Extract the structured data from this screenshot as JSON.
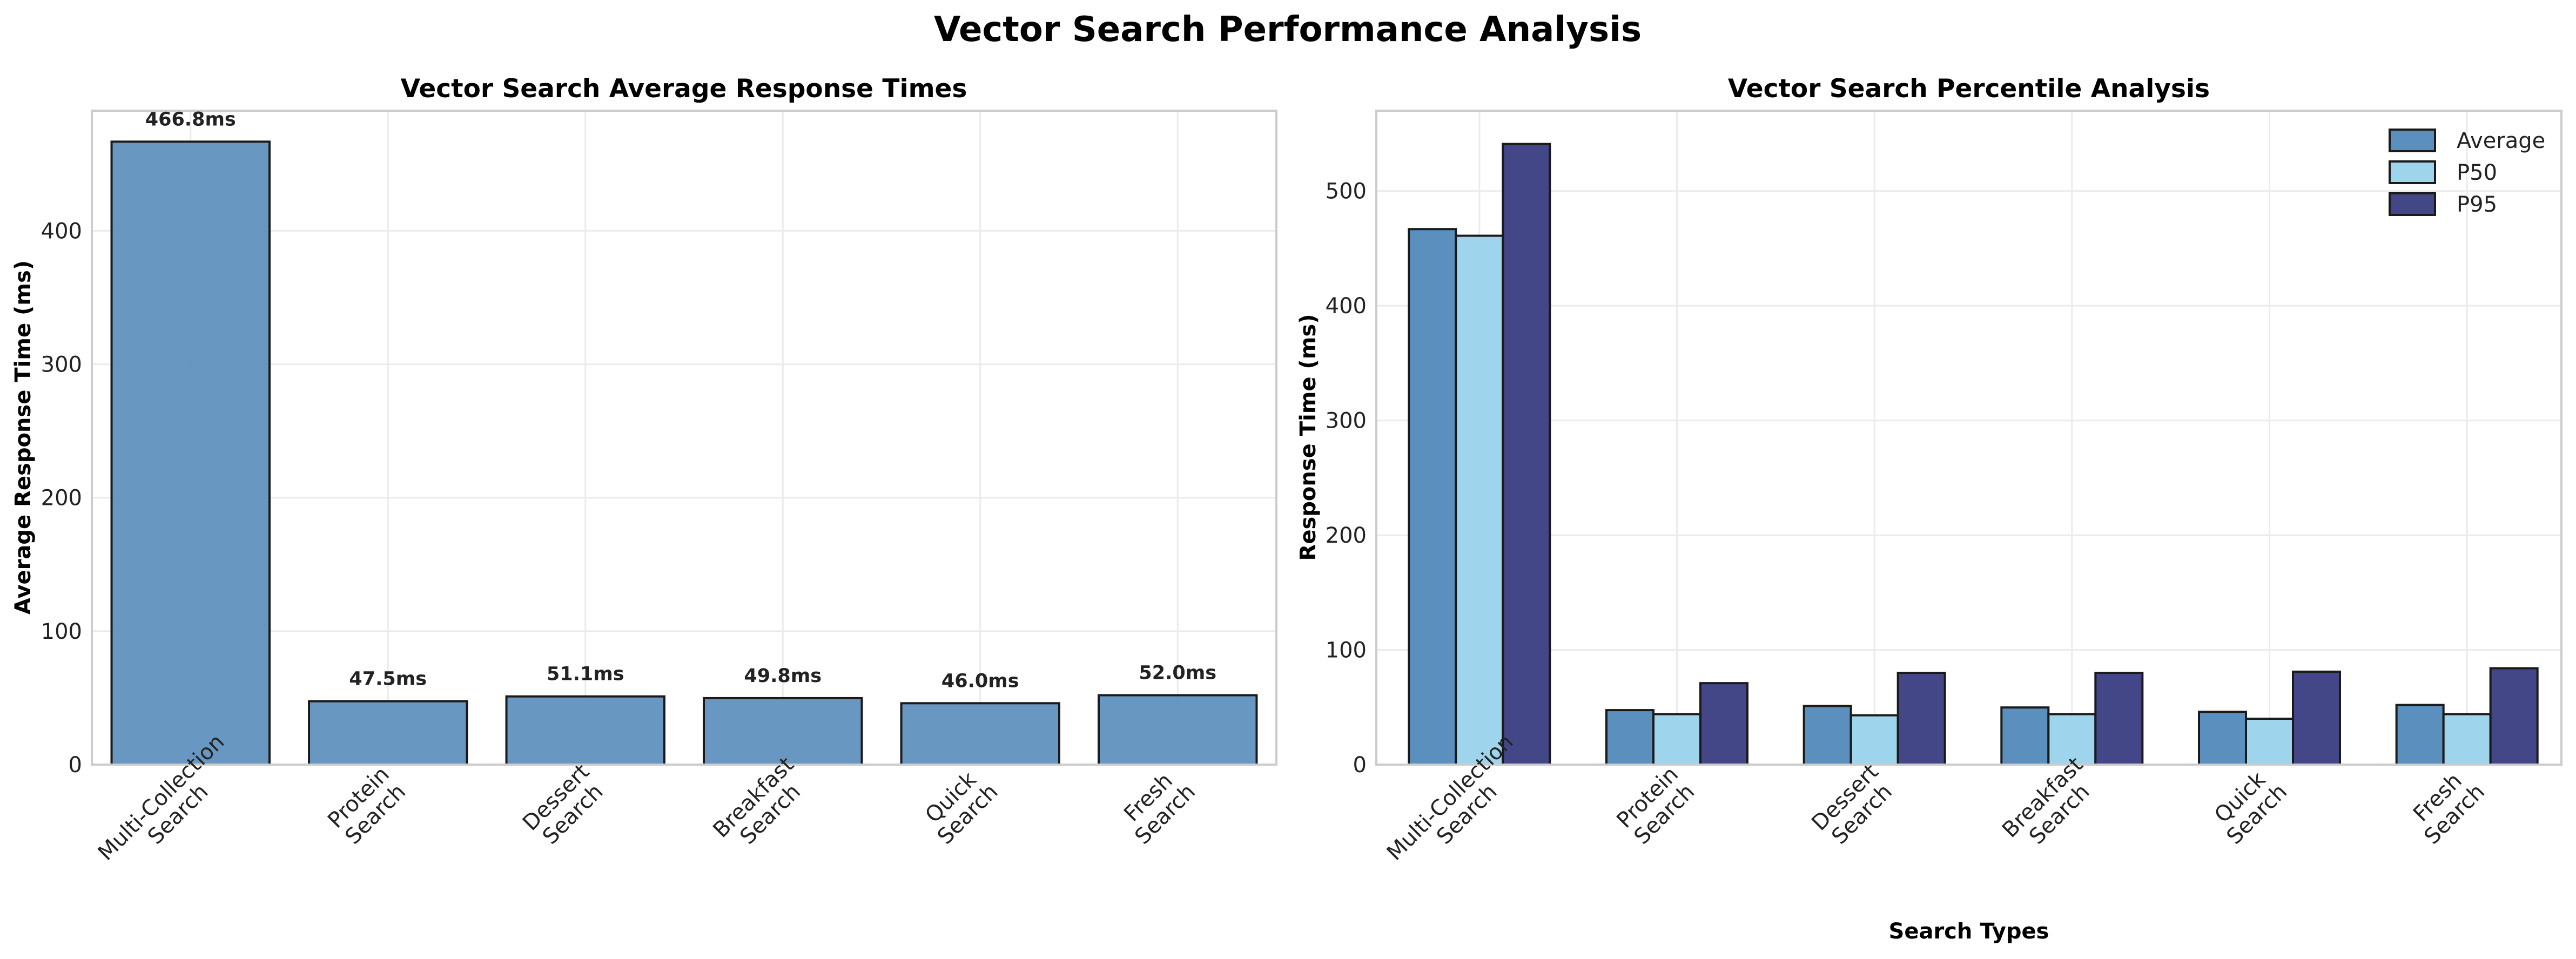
{
  "figure_title": "Vector Search Performance Analysis",
  "chart_data": [
    {
      "type": "bar",
      "title": "Vector Search Average Response Times",
      "xlabel": "",
      "ylabel": "Average Response Time (ms)",
      "categories": [
        "Multi-Collection\nSearch",
        "Protein\nSearch",
        "Dessert\nSearch",
        "Breakfast\nSearch",
        "Quick\nSearch",
        "Fresh\nSearch"
      ],
      "values": [
        466.8,
        47.5,
        51.1,
        49.8,
        46.0,
        52.0
      ],
      "data_labels": [
        "466.8ms",
        "47.5ms",
        "51.1ms",
        "49.8ms",
        "46.0ms",
        "52.0ms"
      ],
      "ylim": [
        0,
        490
      ],
      "yticks": [
        0,
        100,
        200,
        300,
        400
      ],
      "grid": true,
      "color": "#5b8fbd"
    },
    {
      "type": "bar",
      "title": "Vector Search Percentile Analysis",
      "xlabel": "Search Types",
      "ylabel": "Response Time (ms)",
      "categories": [
        "Multi-Collection\nSearch",
        "Protein\nSearch",
        "Dessert\nSearch",
        "Breakfast\nSearch",
        "Quick\nSearch",
        "Fresh\nSearch"
      ],
      "series": [
        {
          "name": "Average",
          "values": [
            466.8,
            47.5,
            51.1,
            49.8,
            46.0,
            52.0
          ],
          "color": "#5b8fbd"
        },
        {
          "name": "P50",
          "values": [
            461,
            44,
            43,
            44,
            40,
            44
          ],
          "color": "#9fd5ec"
        },
        {
          "name": "P95",
          "values": [
            541,
            71,
            80,
            80,
            81,
            84
          ],
          "color": "#434687"
        }
      ],
      "ylim": [
        0,
        570
      ],
      "yticks": [
        0,
        100,
        200,
        300,
        400,
        500
      ],
      "grid": true,
      "legend": "top-right"
    }
  ]
}
